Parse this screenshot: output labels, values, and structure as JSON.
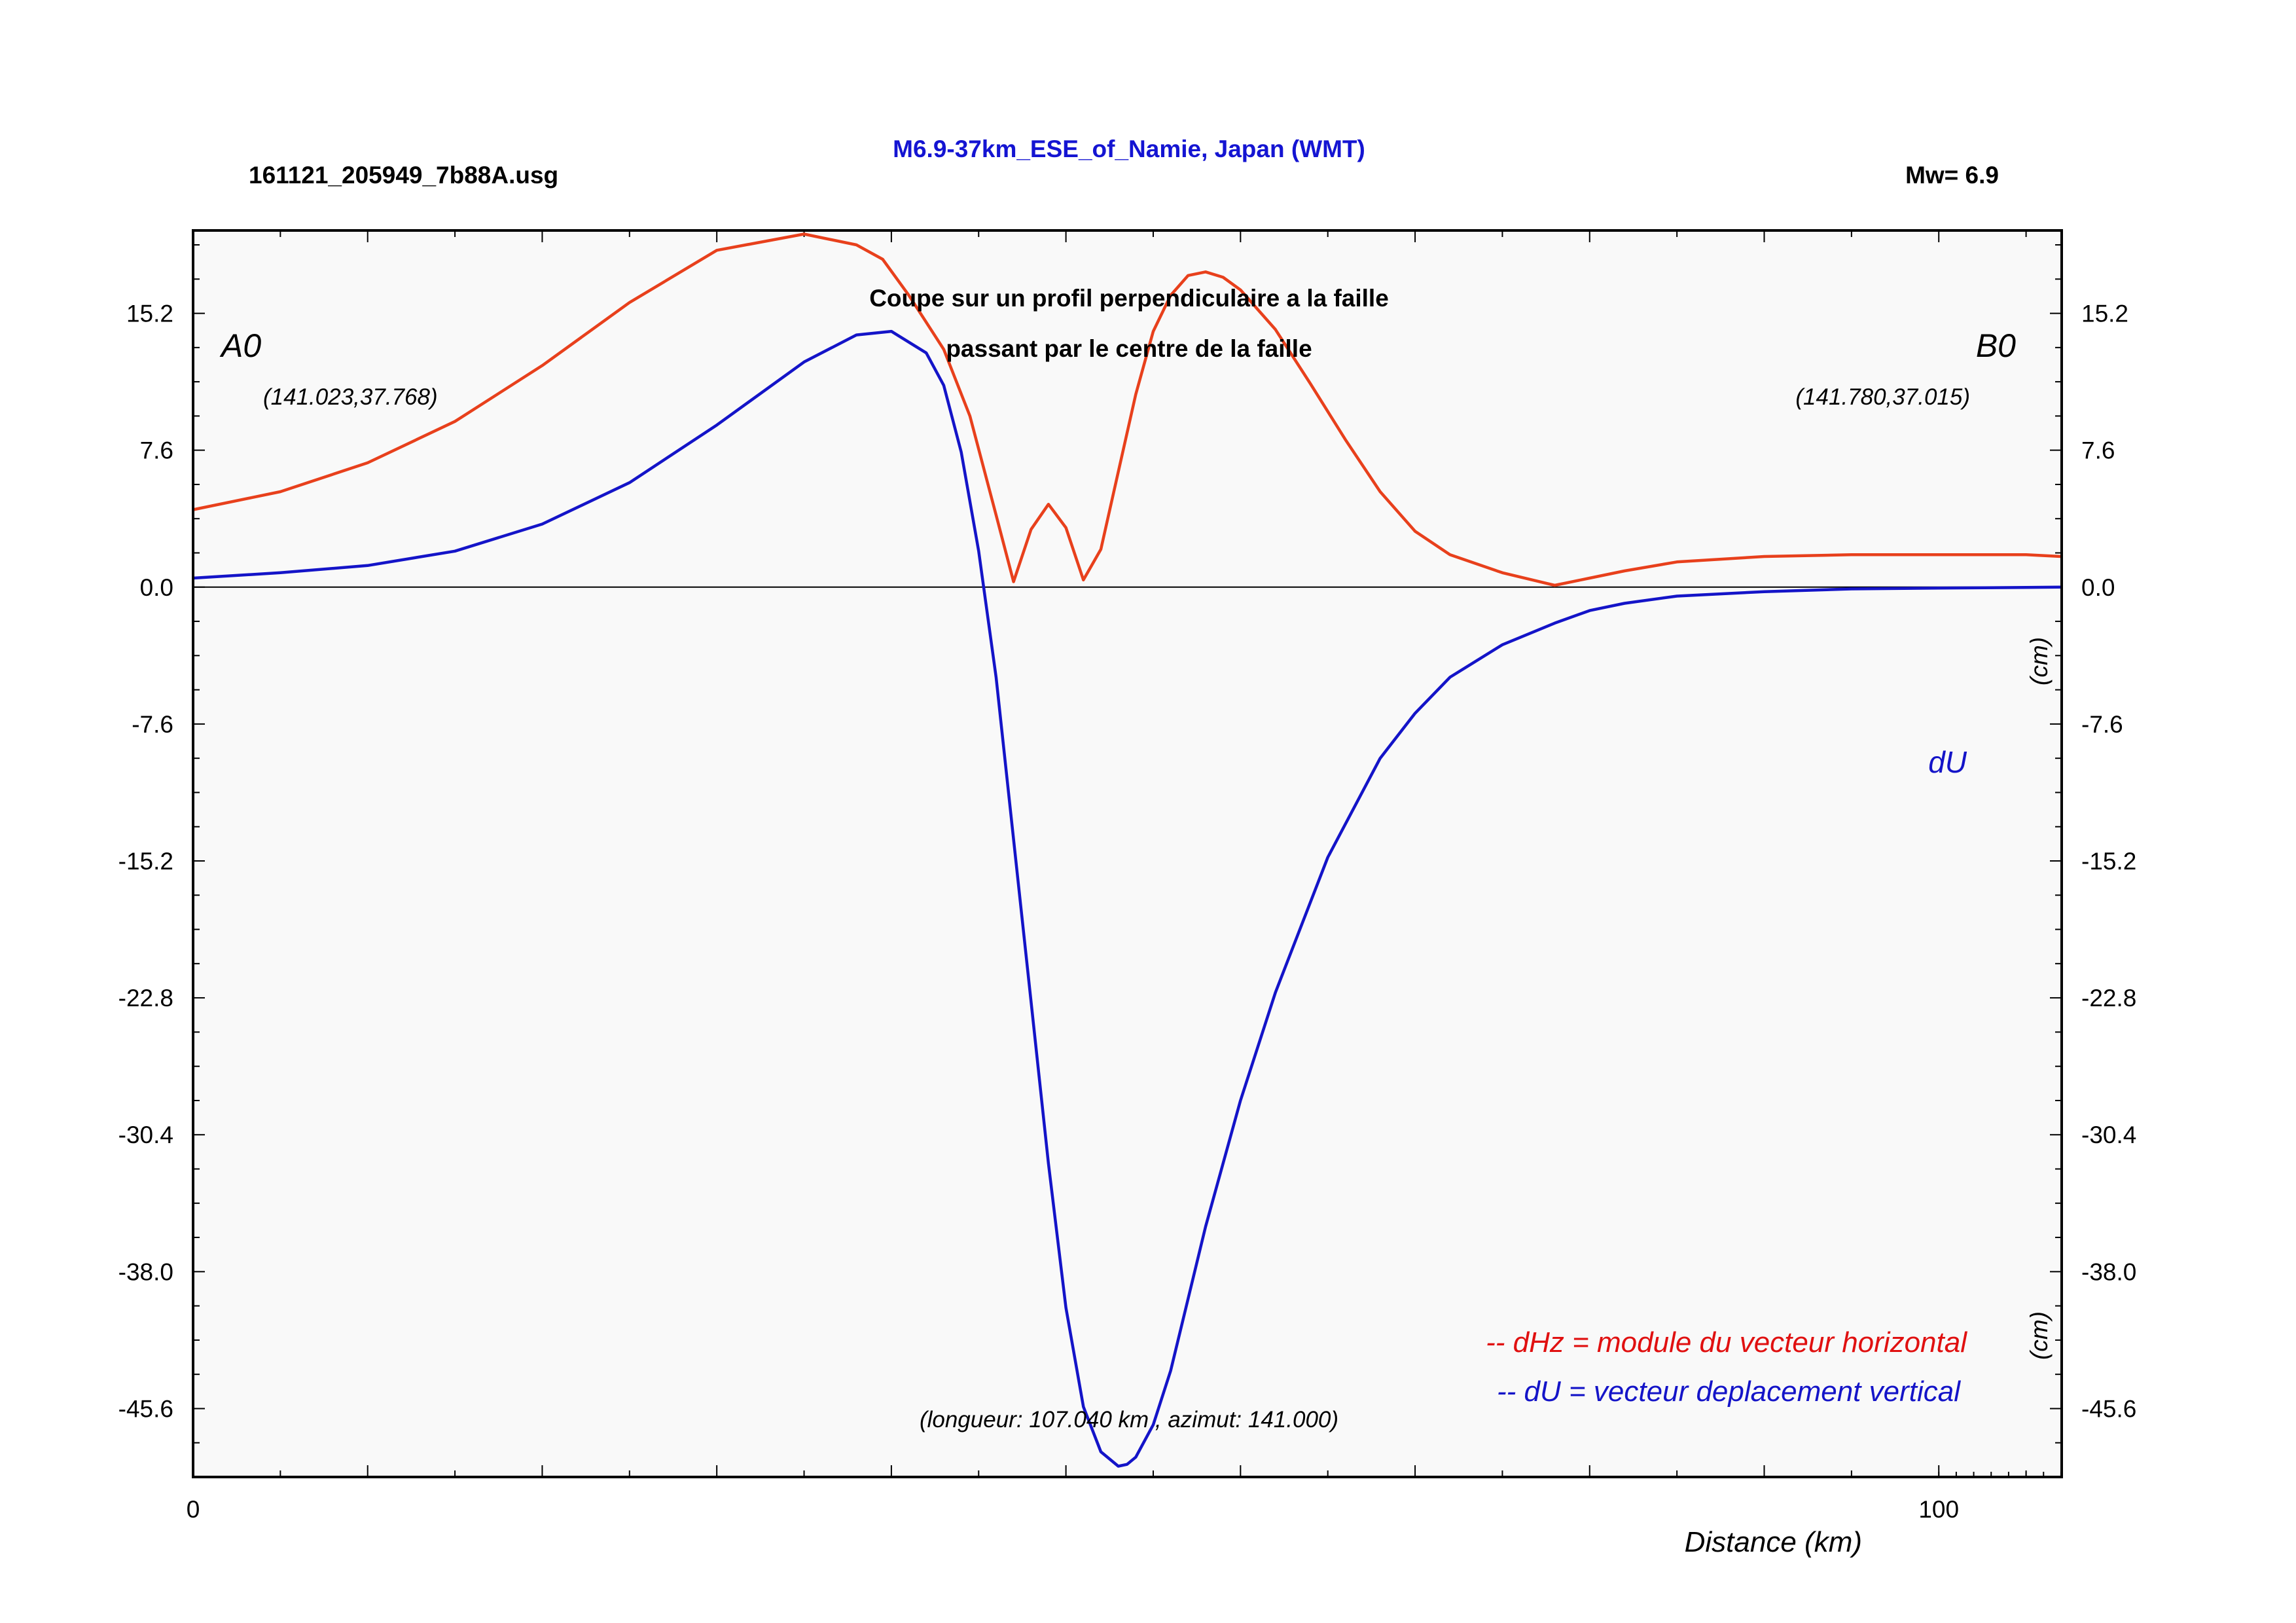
{
  "header": {
    "file_name": "161121_205949_7b88A.usg",
    "event_title": "M6.9-37km_ESE_of_Namie, Japan (WMT)",
    "magnitude": "Mw= 6.9"
  },
  "annotations": {
    "section_title_1": "Coupe sur un profil perpendiculaire a la faille",
    "section_title_2": "passant par le centre de la faille",
    "start_label": "A0",
    "start_coords": "(141.023,37.768)",
    "end_label": "B0",
    "end_coords": "(141.780,37.015)",
    "unit_right_1": "(cm)",
    "unit_right_2": "(cm)",
    "du_label": "dU",
    "length_info": "(longueur: 107.040 km , azimut: 141.000)",
    "legend_dhz": "-- dHz = module du vecteur horizontal",
    "legend_du": "-- dU =  vecteur deplacement vertical"
  },
  "colors": {
    "dhz": "#e8401c",
    "du": "#1414c8",
    "plot_bg": "#f9f9f9",
    "title_blue": "#1414d2",
    "legend_red": "#e01010"
  },
  "chart_data": {
    "type": "line",
    "xlabel": "Distance (km)",
    "ylabel": "",
    "xlim": [
      0,
      107.04
    ],
    "ylim": [
      -49.4,
      19.8
    ],
    "x_ticks": [
      0,
      100
    ],
    "y_ticks": [
      15.2,
      7.6,
      0.0,
      -7.6,
      -15.2,
      -22.8,
      -30.4,
      -38.0,
      -45.6
    ],
    "y_tick_labels": [
      "15.2",
      "7.6",
      "0.0",
      "-7.6",
      "-15.2",
      "-22.8",
      "-30.4",
      "-38.0",
      "-45.6"
    ],
    "grid": false,
    "zero_line": true,
    "series": [
      {
        "name": "dHz",
        "color": "#e8401c",
        "x": [
          0,
          5,
          10,
          15,
          20,
          25,
          30,
          35,
          38,
          39.5,
          41,
          43,
          44.5,
          46,
          47,
          48,
          49,
          50,
          51,
          52,
          53,
          54,
          55,
          56,
          57,
          58,
          59,
          60,
          62,
          64,
          66,
          68,
          70,
          72,
          75,
          78,
          80,
          82,
          85,
          90,
          95,
          100,
          105,
          107
        ],
        "y": [
          4.3,
          5.3,
          6.9,
          9.2,
          12.3,
          15.8,
          18.7,
          19.6,
          19.0,
          18.2,
          16.2,
          13.2,
          9.5,
          4.0,
          0.3,
          3.2,
          4.6,
          3.3,
          0.4,
          2.1,
          6.4,
          10.7,
          14.2,
          16.2,
          17.3,
          17.5,
          17.2,
          16.5,
          14.3,
          11.3,
          8.2,
          5.3,
          3.1,
          1.8,
          0.8,
          0.1,
          0.5,
          0.9,
          1.4,
          1.7,
          1.8,
          1.8,
          1.8,
          1.7
        ]
      },
      {
        "name": "dU",
        "color": "#1414c8",
        "x": [
          0,
          5,
          10,
          15,
          20,
          25,
          30,
          35,
          38,
          40,
          42,
          43,
          44,
          45,
          46,
          47,
          48,
          49,
          50,
          51,
          52,
          53,
          53.5,
          54,
          55,
          56,
          57,
          58,
          60,
          62,
          65,
          68,
          70,
          72,
          75,
          78,
          80,
          82,
          85,
          90,
          95,
          100,
          105,
          107
        ],
        "y": [
          0.5,
          0.8,
          1.2,
          2.0,
          3.5,
          5.8,
          9.0,
          12.5,
          14.0,
          14.2,
          13.0,
          11.2,
          7.5,
          2.0,
          -5.0,
          -14.0,
          -23.0,
          -32.0,
          -40.0,
          -45.5,
          -48.0,
          -48.8,
          -48.7,
          -48.3,
          -46.5,
          -43.5,
          -39.5,
          -35.5,
          -28.5,
          -22.5,
          -15.0,
          -9.5,
          -7.0,
          -5.0,
          -3.2,
          -2.0,
          -1.3,
          -0.9,
          -0.5,
          -0.25,
          -0.1,
          -0.05,
          -0.02,
          0.0
        ]
      }
    ]
  }
}
